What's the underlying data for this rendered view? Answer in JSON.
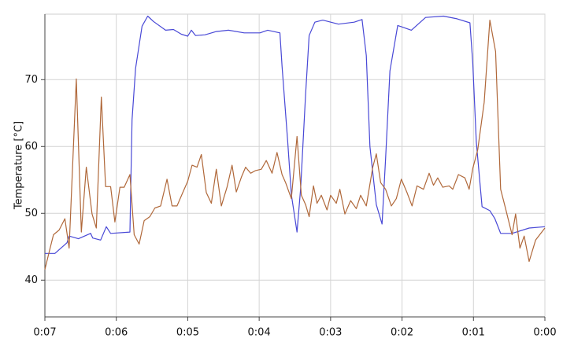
{
  "chart_data": {
    "type": "line",
    "y_label": "Temperature [°C]",
    "xlim": [
      7,
      0
    ],
    "xticks": [
      {
        "value": 7,
        "label": "0:07"
      },
      {
        "value": 6,
        "label": "0:06"
      },
      {
        "value": 5,
        "label": "0:05"
      },
      {
        "value": 4,
        "label": "0:04"
      },
      {
        "value": 3,
        "label": "0:03"
      },
      {
        "value": 2,
        "label": "0:02"
      },
      {
        "value": 1,
        "label": "0:01"
      },
      {
        "value": 0,
        "label": "0:00"
      }
    ],
    "ylim": [
      34.5,
      79.8
    ],
    "yticks": [
      40,
      50,
      60,
      70
    ],
    "grid": true,
    "series": [
      {
        "color": "#4848d6",
        "x": [
          7.0,
          6.86,
          6.69,
          6.66,
          6.53,
          6.36,
          6.33,
          6.22,
          6.14,
          6.08,
          5.81,
          5.78,
          5.73,
          5.64,
          5.56,
          5.48,
          5.31,
          5.2,
          5.09,
          5.0,
          4.95,
          4.89,
          4.76,
          4.6,
          4.43,
          4.21,
          3.99,
          3.88,
          3.71,
          3.68,
          3.6,
          3.55,
          3.47,
          3.42,
          3.35,
          3.3,
          3.22,
          3.11,
          2.89,
          2.67,
          2.56,
          2.5,
          2.45,
          2.36,
          2.28,
          2.23,
          2.17,
          2.06,
          1.87,
          1.67,
          1.42,
          1.23,
          1.05,
          1.01,
          0.96,
          0.88,
          0.77,
          0.7,
          0.62,
          0.46,
          0.22,
          0.0
        ],
        "values": [
          44.0,
          44.0,
          45.6,
          46.6,
          46.2,
          47.0,
          46.3,
          46.0,
          48.0,
          47.0,
          47.2,
          64.0,
          71.7,
          78.0,
          79.5,
          78.7,
          77.4,
          77.5,
          76.8,
          76.5,
          77.4,
          76.6,
          76.7,
          77.2,
          77.4,
          77.0,
          77.0,
          77.4,
          77.0,
          72.0,
          60.7,
          52.8,
          47.2,
          53.7,
          67.8,
          76.6,
          78.6,
          78.9,
          78.3,
          78.6,
          79.0,
          73.6,
          60.0,
          51.3,
          48.4,
          58.2,
          71.3,
          78.1,
          77.4,
          79.3,
          79.5,
          79.1,
          78.5,
          72.5,
          60.7,
          51.0,
          50.4,
          49.2,
          47.0,
          47.0,
          47.8,
          48.0
        ]
      },
      {
        "color": "#b0683a",
        "x": [
          7.0,
          6.94,
          6.88,
          6.8,
          6.72,
          6.66,
          6.56,
          6.49,
          6.42,
          6.34,
          6.28,
          6.21,
          6.15,
          6.08,
          6.02,
          5.95,
          5.89,
          5.81,
          5.75,
          5.68,
          5.61,
          5.53,
          5.46,
          5.38,
          5.29,
          5.22,
          5.15,
          5.07,
          5.0,
          4.94,
          4.87,
          4.81,
          4.74,
          4.67,
          4.6,
          4.53,
          4.45,
          4.38,
          4.32,
          4.25,
          4.19,
          4.12,
          4.05,
          3.97,
          3.9,
          3.82,
          3.75,
          3.68,
          3.63,
          3.55,
          3.47,
          3.41,
          3.35,
          3.3,
          3.24,
          3.19,
          3.13,
          3.05,
          3.0,
          2.92,
          2.87,
          2.8,
          2.72,
          2.64,
          2.58,
          2.5,
          2.41,
          2.36,
          2.3,
          2.23,
          2.15,
          2.08,
          2.01,
          1.93,
          1.86,
          1.79,
          1.7,
          1.62,
          1.56,
          1.5,
          1.43,
          1.34,
          1.29,
          1.21,
          1.12,
          1.06,
          1.01,
          0.94,
          0.85,
          0.77,
          0.69,
          0.62,
          0.55,
          0.46,
          0.41,
          0.35,
          0.29,
          0.22,
          0.13,
          0.0
        ],
        "values": [
          41.6,
          44.2,
          46.8,
          47.5,
          49.2,
          44.8,
          70.1,
          47.2,
          56.9,
          49.9,
          47.8,
          67.4,
          54.0,
          54.0,
          48.7,
          53.9,
          53.9,
          55.8,
          46.8,
          45.4,
          48.9,
          49.5,
          50.8,
          51.1,
          55.1,
          51.1,
          51.1,
          53.1,
          54.8,
          57.2,
          56.9,
          58.8,
          53.1,
          51.5,
          56.6,
          51.1,
          53.9,
          57.2,
          53.2,
          55.4,
          56.9,
          56.0,
          56.4,
          56.6,
          57.9,
          56.0,
          59.1,
          55.8,
          54.6,
          52.2,
          61.5,
          52.7,
          51.3,
          49.5,
          54.1,
          51.5,
          52.7,
          50.5,
          52.7,
          51.5,
          53.6,
          49.9,
          51.9,
          50.7,
          52.7,
          51.1,
          56.9,
          58.9,
          54.6,
          53.6,
          51.1,
          52.2,
          55.1,
          53.1,
          51.1,
          54.1,
          53.6,
          56.0,
          54.2,
          55.3,
          53.9,
          54.1,
          53.6,
          55.8,
          55.3,
          53.6,
          56.7,
          59.5,
          66.6,
          78.9,
          74.2,
          53.6,
          50.7,
          46.8,
          49.9,
          44.8,
          46.6,
          42.8,
          46.0,
          47.8
        ]
      }
    ]
  }
}
